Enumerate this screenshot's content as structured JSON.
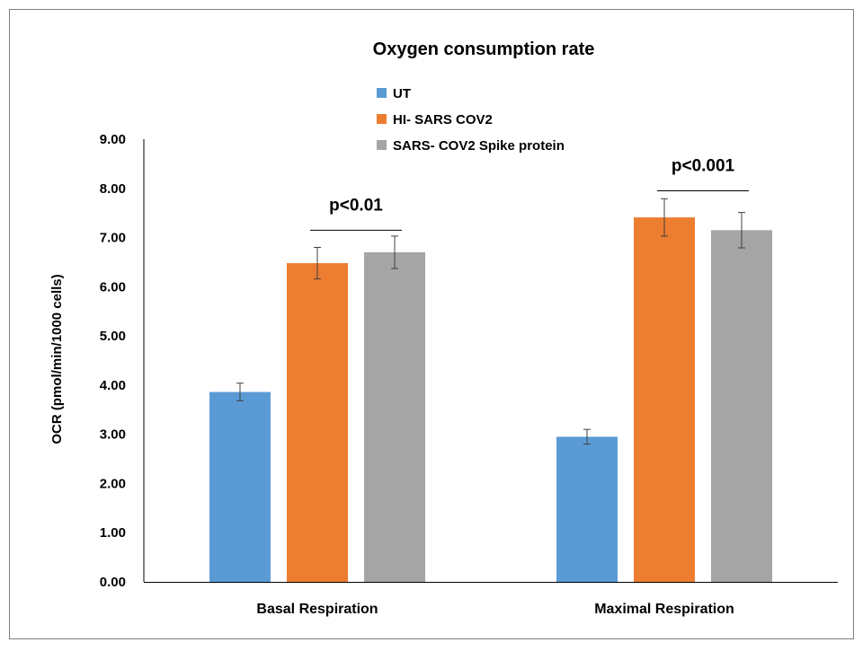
{
  "chart_data": {
    "type": "bar",
    "title": "Oxygen consumption rate",
    "xlabel": "",
    "ylabel": "OCR (pmol/min/1000 cells)",
    "ylim": [
      0,
      9
    ],
    "yticks": [
      "0.00",
      "1.00",
      "2.00",
      "3.00",
      "4.00",
      "5.00",
      "6.00",
      "7.00",
      "8.00",
      "9.00"
    ],
    "categories": [
      "Basal Respiration",
      "Maximal  Respiration"
    ],
    "series": [
      {
        "name": "UT",
        "color": "#5B9BD5",
        "values": [
          3.86,
          2.95
        ],
        "errors": [
          0.18,
          0.15
        ]
      },
      {
        "name": "HI- SARS COV2",
        "color": "#ED7D31",
        "values": [
          6.48,
          7.41
        ],
        "errors": [
          0.32,
          0.38
        ]
      },
      {
        "name": "SARS- COV2 Spike protein",
        "color": "#A5A5A5",
        "values": [
          6.7,
          7.15
        ],
        "errors": [
          0.33,
          0.36
        ]
      }
    ],
    "annotations": [
      {
        "text": "p<0.01",
        "category": 0,
        "from_series": 1,
        "to_series": 2,
        "at": 7.15
      },
      {
        "text": "p<0.001",
        "category": 1,
        "from_series": 1,
        "to_series": 2,
        "at": 7.95
      }
    ],
    "legend_position": "top-center",
    "grid": false
  }
}
